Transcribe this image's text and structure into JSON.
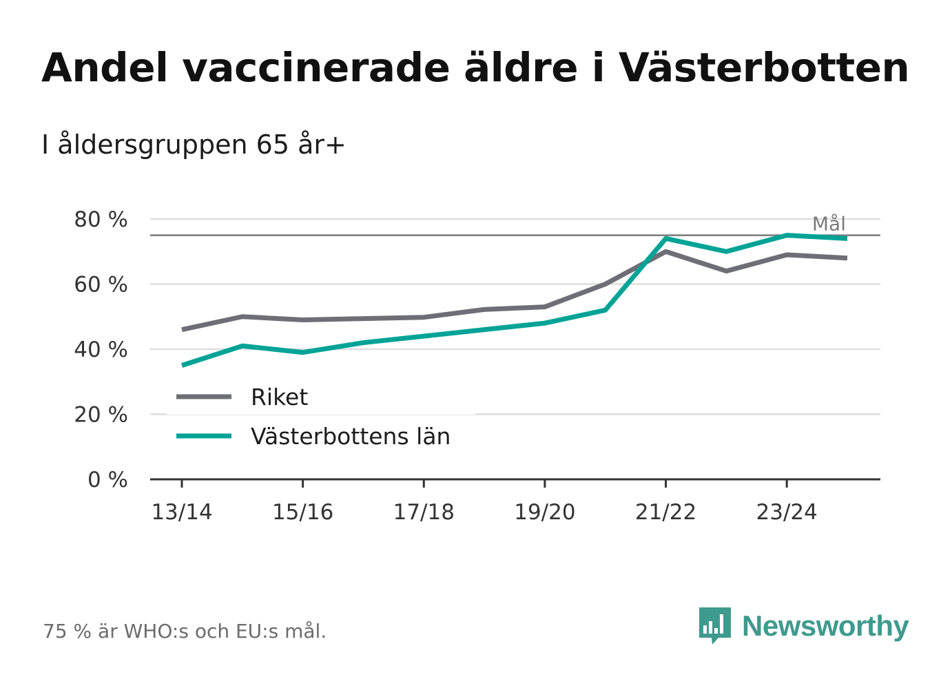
{
  "title": "Andel vaccinerade äldre i Västerbotten",
  "subtitle": "I åldersgruppen 65 år+",
  "footnote": "75 % är WHO:s och EU:s mål.",
  "brand": {
    "name": "Newsworthy",
    "color": "#3f9a8e"
  },
  "chart_data": {
    "type": "line",
    "title": "Andel vaccinerade äldre i Västerbotten",
    "subtitle": "I åldersgruppen 65 år+",
    "xlabel": "",
    "ylabel": "",
    "x": [
      "13/14",
      "14/15",
      "15/16",
      "16/17",
      "17/18",
      "18/19",
      "19/20",
      "20/21",
      "21/22",
      "22/23",
      "23/24",
      "24/25"
    ],
    "x_tick_labels": [
      "13/14",
      "15/16",
      "17/18",
      "19/20",
      "21/22",
      "23/24"
    ],
    "y_tick_values": [
      0,
      20,
      40,
      60,
      80
    ],
    "y_tick_labels": [
      "0 %",
      "20 %",
      "40 %",
      "60 %",
      "80 %"
    ],
    "ylim": [
      0,
      80
    ],
    "grid": true,
    "legend_position": "bottom-left",
    "series": [
      {
        "name": "Riket",
        "color": "#6e6e76",
        "values": [
          46,
          50,
          49,
          49.4,
          49.8,
          52.2,
          53,
          60,
          70,
          64,
          69,
          68
        ]
      },
      {
        "name": "Västerbottens län",
        "color": "#00a396",
        "values": [
          35,
          41,
          39,
          42,
          44,
          46,
          48,
          52,
          74,
          70,
          75,
          74
        ]
      }
    ],
    "reference_line": {
      "value": 75,
      "label": "Mål",
      "color": "#7a7a7a"
    }
  }
}
